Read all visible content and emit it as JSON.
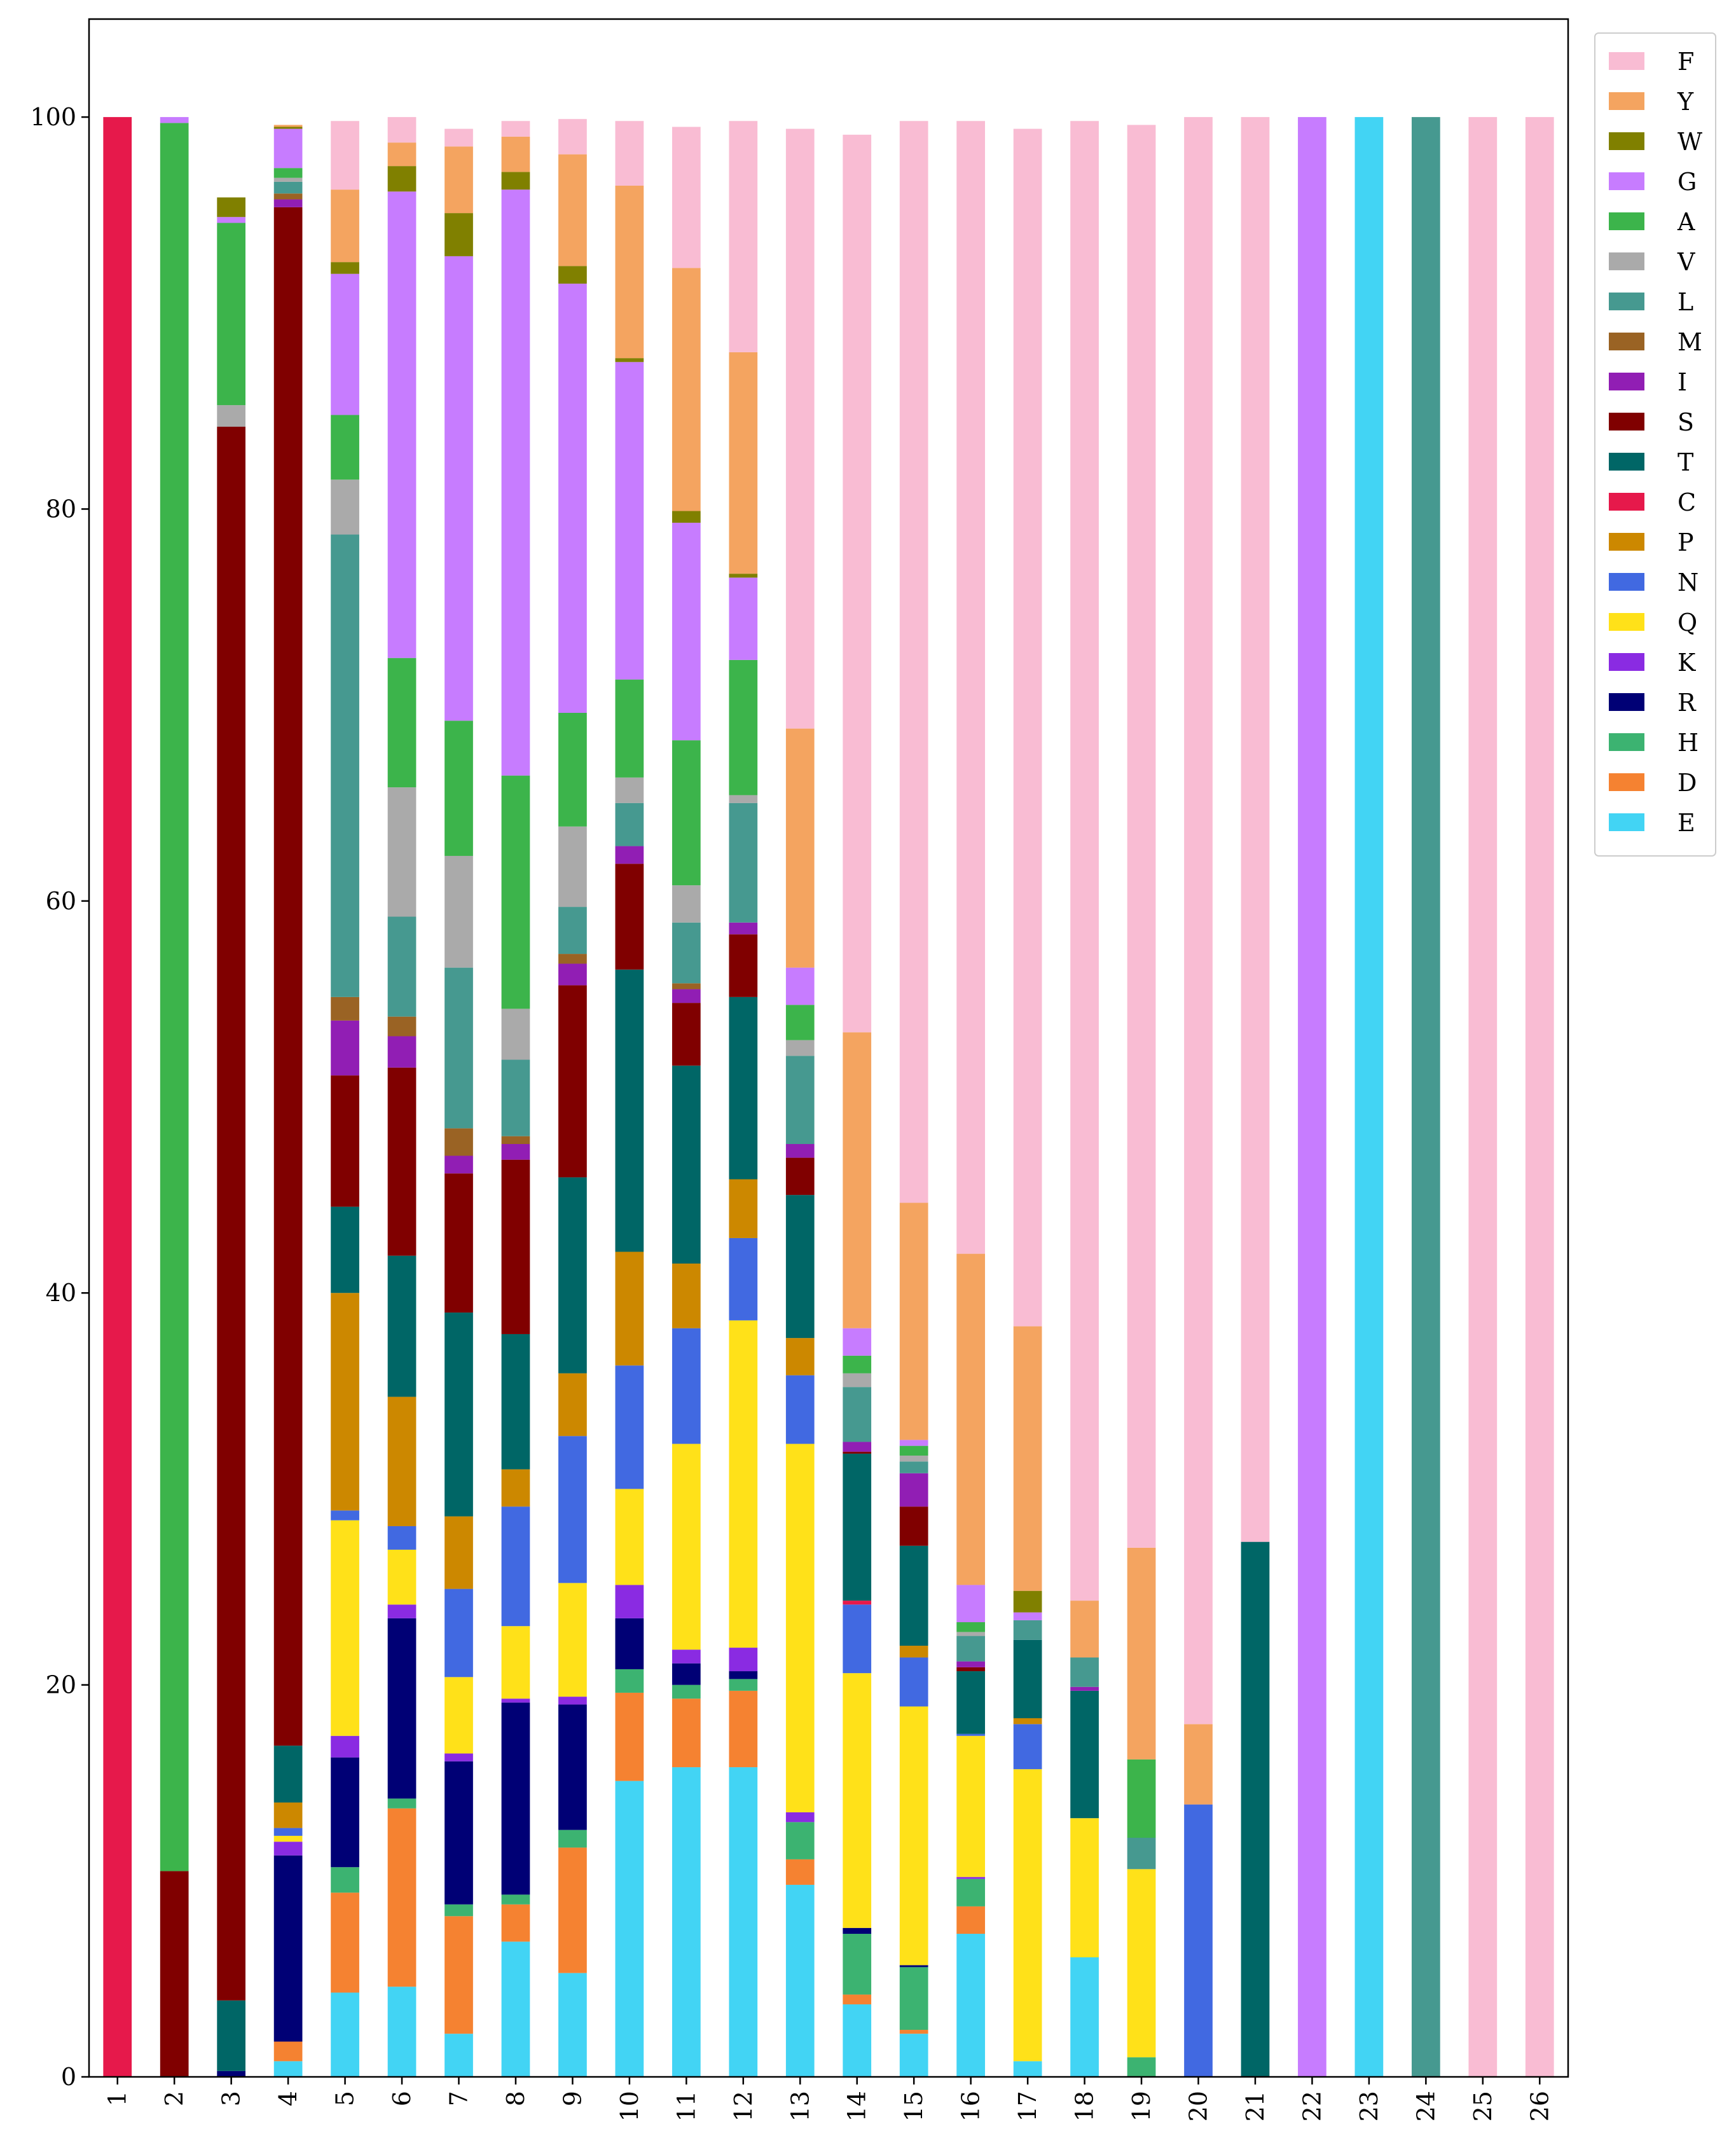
{
  "chart_data": {
    "type": "bar",
    "stacked": true,
    "title": "",
    "xlabel": "",
    "ylabel": "",
    "ylim": [
      0,
      105
    ],
    "yticks": [
      0,
      20,
      40,
      60,
      80,
      100
    ],
    "categories": [
      "1",
      "2",
      "3",
      "4",
      "5",
      "6",
      "7",
      "8",
      "9",
      "10",
      "11",
      "12",
      "13",
      "14",
      "15",
      "16",
      "17",
      "18",
      "19",
      "20",
      "21",
      "22",
      "23",
      "24",
      "25",
      "26"
    ],
    "grid": false,
    "legend_position": "top-right",
    "legend_order": [
      "F",
      "Y",
      "W",
      "G",
      "A",
      "V",
      "L",
      "M",
      "I",
      "S",
      "T",
      "C",
      "P",
      "N",
      "Q",
      "K",
      "R",
      "H",
      "D",
      "E"
    ],
    "series": [
      {
        "name": "E",
        "color": "#42D4F4",
        "values": [
          0,
          0,
          0,
          0.8,
          4.3,
          4.6,
          2.2,
          6.9,
          5.3,
          15.1,
          15.8,
          15.8,
          9.8,
          3.7,
          2.2,
          7.3,
          0.8,
          6.1,
          0,
          0,
          0,
          0,
          100,
          0,
          0,
          0
        ]
      },
      {
        "name": "D",
        "color": "#F58231",
        "values": [
          0,
          0,
          0,
          1.0,
          5.1,
          9.1,
          6.0,
          1.9,
          6.4,
          4.5,
          3.5,
          3.9,
          1.3,
          0.5,
          0.2,
          1.4,
          0,
          0,
          0,
          0,
          0,
          0,
          0,
          0,
          0,
          0
        ]
      },
      {
        "name": "H",
        "color": "#3CB371",
        "values": [
          0,
          0,
          0,
          0,
          1.3,
          0.5,
          0.6,
          0.5,
          0.9,
          1.2,
          0.7,
          0.6,
          1.9,
          3.1,
          3.2,
          1.4,
          0,
          0,
          1.0,
          0,
          0,
          0,
          0,
          0,
          0,
          0
        ]
      },
      {
        "name": "R",
        "color": "#000075",
        "values": [
          0,
          0,
          0.3,
          9.5,
          5.6,
          9.2,
          7.3,
          9.8,
          6.4,
          2.6,
          1.1,
          0.4,
          0,
          0.3,
          0.1,
          0,
          0,
          0,
          0,
          0,
          0,
          0,
          0,
          0,
          0,
          0
        ]
      },
      {
        "name": "K",
        "color": "#8A2BE2",
        "values": [
          0,
          0,
          0,
          0.7,
          1.1,
          0.7,
          0.4,
          0.2,
          0.4,
          1.7,
          0.7,
          1.2,
          0.5,
          0,
          0,
          0.1,
          0,
          0,
          0,
          0,
          0,
          0,
          0,
          0,
          0,
          0
        ]
      },
      {
        "name": "Q",
        "color": "#FFE119",
        "values": [
          0,
          0,
          0,
          0.3,
          11.0,
          2.8,
          3.9,
          3.7,
          5.8,
          4.9,
          10.5,
          16.7,
          18.8,
          13.0,
          13.2,
          7.2,
          14.9,
          7.1,
          9.6,
          0,
          0,
          0,
          0,
          0,
          0,
          0
        ]
      },
      {
        "name": "N",
        "color": "#4169E1",
        "values": [
          0,
          0,
          0,
          0.4,
          0.5,
          1.2,
          4.5,
          6.1,
          7.5,
          6.3,
          5.9,
          4.2,
          3.5,
          3.5,
          2.5,
          0.1,
          2.3,
          0,
          0,
          13.9,
          0,
          0,
          0,
          0,
          0,
          0
        ]
      },
      {
        "name": "P",
        "color": "#CC8800",
        "values": [
          0,
          0,
          0,
          1.3,
          11.1,
          6.6,
          3.7,
          1.9,
          3.2,
          5.8,
          3.3,
          3.0,
          1.9,
          0,
          0.6,
          0,
          0.3,
          0,
          0,
          0,
          0,
          0,
          0,
          0,
          0,
          0
        ]
      },
      {
        "name": "C",
        "color": "#E6194B",
        "values": [
          100,
          0,
          0,
          0,
          0,
          0,
          0,
          0,
          0,
          0,
          0,
          0,
          0,
          0.2,
          0,
          0,
          0,
          0,
          0,
          0,
          0,
          0,
          0,
          0,
          0,
          0
        ]
      },
      {
        "name": "T",
        "color": "#006666",
        "values": [
          0,
          0,
          3.6,
          2.9,
          4.4,
          7.2,
          10.4,
          6.9,
          10.0,
          14.4,
          10.1,
          9.3,
          7.3,
          7.5,
          5.1,
          3.2,
          4.0,
          6.5,
          0,
          0,
          27.3,
          0,
          0,
          0,
          0,
          0
        ]
      },
      {
        "name": "S",
        "color": "#800000",
        "values": [
          0,
          10.5,
          80.3,
          78.5,
          6.7,
          9.6,
          7.1,
          8.9,
          9.8,
          5.4,
          3.2,
          3.2,
          1.9,
          0.1,
          2.0,
          0.2,
          0,
          0,
          0,
          0,
          0,
          0,
          0,
          0,
          0,
          0
        ]
      },
      {
        "name": "I",
        "color": "#911EB4",
        "values": [
          0,
          0,
          0,
          0.4,
          2.8,
          1.6,
          0.9,
          0.8,
          1.1,
          0.9,
          0.7,
          0.6,
          0.7,
          0.5,
          1.7,
          0.3,
          0,
          0.2,
          0,
          0,
          0,
          0,
          0,
          0,
          0,
          0
        ]
      },
      {
        "name": "M",
        "color": "#9A6324",
        "values": [
          0,
          0,
          0,
          0.3,
          1.2,
          1.0,
          1.4,
          0.4,
          0.5,
          0,
          0.3,
          0,
          0,
          0,
          0,
          0,
          0,
          0,
          0,
          0,
          0,
          0,
          0,
          0,
          0,
          0
        ]
      },
      {
        "name": "L",
        "color": "#469990",
        "values": [
          0,
          0,
          0,
          0.6,
          23.6,
          5.1,
          8.2,
          3.9,
          2.4,
          2.2,
          3.1,
          6.1,
          4.5,
          2.8,
          0.6,
          1.3,
          1.0,
          1.5,
          1.6,
          0,
          0,
          0,
          0,
          100,
          0,
          0
        ]
      },
      {
        "name": "V",
        "color": "#AAAAAA",
        "values": [
          0,
          0,
          1.1,
          0.2,
          2.8,
          6.6,
          5.7,
          2.6,
          4.1,
          1.3,
          1.9,
          0.4,
          0.8,
          0.7,
          0.3,
          0.2,
          0,
          0,
          0,
          0,
          0,
          0,
          0,
          0,
          0,
          0
        ]
      },
      {
        "name": "A",
        "color": "#3CB44B",
        "values": [
          0,
          89.2,
          9.3,
          0.5,
          3.3,
          6.6,
          6.9,
          11.9,
          5.8,
          5.0,
          7.4,
          6.9,
          1.8,
          0.9,
          0.5,
          0.5,
          0,
          0,
          4.0,
          0,
          0,
          0,
          0,
          0,
          0,
          0
        ]
      },
      {
        "name": "G",
        "color": "#C77CFF",
        "values": [
          0,
          0.3,
          0.3,
          2.0,
          7.2,
          23.8,
          23.7,
          29.9,
          21.9,
          16.2,
          11.1,
          4.2,
          1.9,
          1.4,
          0.3,
          1.9,
          0.4,
          0,
          0,
          0,
          0,
          100,
          0,
          0,
          0,
          0
        ]
      },
      {
        "name": "W",
        "color": "#808000",
        "values": [
          0,
          0,
          1.0,
          0.1,
          0.6,
          1.3,
          2.2,
          0.9,
          0.9,
          0.2,
          0.6,
          0.2,
          0,
          0,
          0,
          0,
          1.1,
          0,
          0,
          0,
          0,
          0,
          0,
          0,
          0,
          0
        ]
      },
      {
        "name": "Y",
        "color": "#F4A460",
        "values": [
          0,
          0,
          0,
          0.1,
          3.7,
          1.2,
          3.4,
          1.8,
          5.7,
          8.8,
          12.4,
          11.3,
          12.2,
          15.1,
          12.1,
          16.9,
          13.5,
          2.9,
          10.8,
          4.1,
          0,
          0,
          0,
          0,
          0,
          0
        ]
      },
      {
        "name": "F",
        "color": "#F9BCD3",
        "values": [
          0,
          0,
          0,
          0,
          3.5,
          1.3,
          0.9,
          0.8,
          1.8,
          3.3,
          7.2,
          11.8,
          30.6,
          45.8,
          55.2,
          57.8,
          61.1,
          75.5,
          72.6,
          82.0,
          72.7,
          0,
          0,
          0,
          100,
          100
        ]
      }
    ]
  }
}
